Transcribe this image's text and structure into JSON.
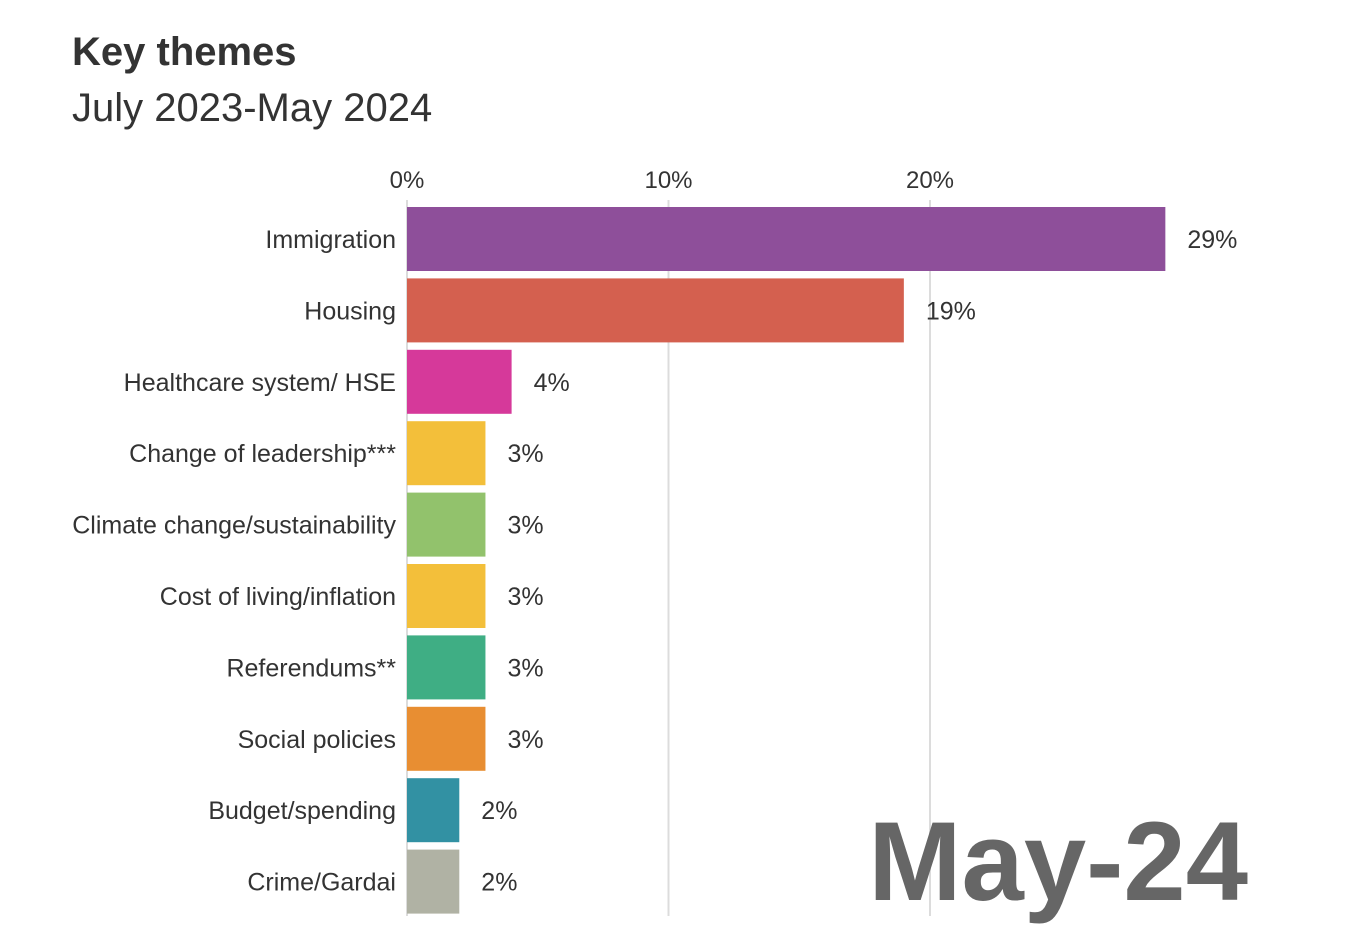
{
  "header": {
    "title": "Key themes",
    "subtitle": "July 2023-May 2024"
  },
  "period_label": "May-24",
  "chart_data": {
    "type": "bar",
    "orientation": "horizontal",
    "title": "Key themes",
    "subtitle": "July 2023-May 2024",
    "xlabel": "",
    "ylabel": "",
    "xlim": [
      0,
      29
    ],
    "x_ticks": [
      0,
      10,
      20
    ],
    "x_tick_labels": [
      "0%",
      "10%",
      "20%"
    ],
    "grid": true,
    "categories": [
      "Immigration",
      "Housing",
      "Healthcare system/ HSE",
      "Change of leadership***",
      "Climate change/sustainability",
      "Cost of living/inflation",
      "Referendums**",
      "Social policies",
      "Budget/spending",
      "Crime/Gardai"
    ],
    "values": [
      29,
      19,
      4,
      3,
      3,
      3,
      3,
      3,
      2,
      2
    ],
    "value_labels": [
      "29%",
      "19%",
      "4%",
      "3%",
      "3%",
      "3%",
      "3%",
      "3%",
      "2%",
      "2%"
    ],
    "colors": [
      "#8e4f9a",
      "#d4604f",
      "#d6399a",
      "#f3bf3a",
      "#92c26c",
      "#f3bf3a",
      "#3fae84",
      "#e88e32",
      "#3291a3",
      "#b0b2a4"
    ]
  }
}
